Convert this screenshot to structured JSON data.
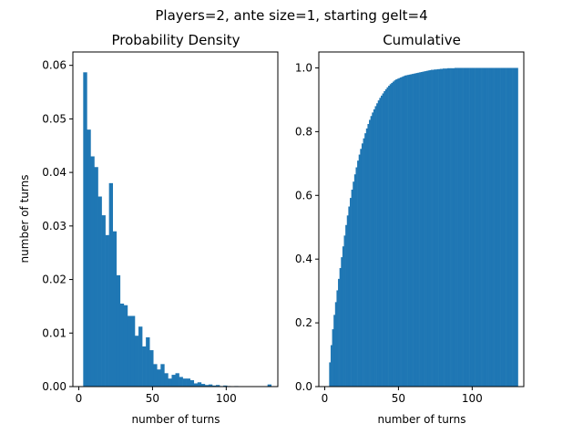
{
  "figure": {
    "suptitle": "Players=2, ante size=1, starting gelt=4",
    "bar_color": "#1f77b4"
  },
  "chart_data": [
    {
      "type": "bar",
      "title": "Probability Density",
      "xlabel": "number of turns",
      "ylabel": "number of turns",
      "xlim": [
        -4,
        135
      ],
      "ylim": [
        0,
        0.0625
      ],
      "xticks": [
        0,
        50,
        100
      ],
      "xtick_labels": [
        "0",
        "50",
        "100"
      ],
      "yticks": [
        0,
        0.01,
        0.02,
        0.03,
        0.04,
        0.05,
        0.06
      ],
      "ytick_labels": [
        "0.00",
        "0.01",
        "0.02",
        "0.03",
        "0.04",
        "0.05",
        "0.06"
      ],
      "bin_edges": [
        3,
        5.5,
        8,
        10.5,
        13,
        15.5,
        18,
        20.5,
        23,
        25.5,
        28,
        30.5,
        33,
        35.5,
        38,
        40.5,
        43,
        45.5,
        48,
        50.5,
        53,
        55.5,
        58,
        60.5,
        63,
        65.5,
        68,
        70.5,
        73,
        75.5,
        78,
        80.5,
        83,
        85.5,
        88,
        90.5,
        93,
        95.5,
        98,
        100.5,
        103,
        105.5,
        108,
        110.5,
        113,
        115.5,
        118,
        120.5,
        123,
        125.5,
        128,
        130.5
      ],
      "values": [
        0.0587,
        0.048,
        0.043,
        0.041,
        0.0355,
        0.032,
        0.0283,
        0.038,
        0.029,
        0.0208,
        0.0155,
        0.0152,
        0.0132,
        0.0132,
        0.0095,
        0.0112,
        0.0075,
        0.0092,
        0.0068,
        0.0042,
        0.0032,
        0.0042,
        0.0025,
        0.0015,
        0.0022,
        0.0025,
        0.0018,
        0.0015,
        0.0015,
        0.0012,
        0.0006,
        0.0008,
        0.0005,
        0.0003,
        0.0004,
        0.0002,
        0.0003,
        0.0001,
        0.0002,
        0.0001,
        0.0,
        0.0001,
        0.0,
        0.0,
        0.0,
        0.0,
        0.0,
        0.0,
        0.0,
        0.0,
        0.0004
      ]
    },
    {
      "type": "bar",
      "title": "Cumulative",
      "xlabel": "number of turns",
      "ylabel": "",
      "xlim": [
        -4,
        135
      ],
      "ylim": [
        0,
        1.05
      ],
      "xticks": [
        0,
        50,
        100
      ],
      "xtick_labels": [
        "0",
        "50",
        "100"
      ],
      "yticks": [
        0,
        0.2,
        0.4,
        0.6,
        0.8,
        1.0
      ],
      "ytick_labels": [
        "0.0",
        "0.2",
        "0.4",
        "0.6",
        "0.8",
        "1.0"
      ],
      "x_start": 3,
      "bin_width": 1,
      "values": [
        0.076,
        0.13,
        0.18,
        0.225,
        0.265,
        0.302,
        0.338,
        0.372,
        0.406,
        0.44,
        0.474,
        0.507,
        0.537,
        0.565,
        0.592,
        0.618,
        0.643,
        0.666,
        0.688,
        0.709,
        0.728,
        0.746,
        0.763,
        0.779,
        0.795,
        0.81,
        0.824,
        0.837,
        0.849,
        0.86,
        0.87,
        0.88,
        0.889,
        0.898,
        0.906,
        0.913,
        0.92,
        0.927,
        0.933,
        0.939,
        0.944,
        0.949,
        0.953,
        0.957,
        0.961,
        0.964,
        0.966,
        0.968,
        0.97,
        0.972,
        0.974,
        0.976,
        0.977,
        0.978,
        0.979,
        0.98,
        0.981,
        0.982,
        0.983,
        0.984,
        0.985,
        0.986,
        0.987,
        0.988,
        0.989,
        0.99,
        0.991,
        0.992,
        0.993,
        0.994,
        0.994,
        0.995,
        0.995,
        0.996,
        0.996,
        0.997,
        0.997,
        0.998,
        0.998,
        0.998,
        0.999,
        0.999,
        0.999,
        0.999,
        0.999,
        1.0,
        1.0,
        1.0,
        1.0,
        1.0,
        1.0,
        1.0,
        1.0,
        1.0,
        1.0,
        1.0,
        1.0,
        1.0,
        1.0,
        1.0,
        1.0,
        1.0,
        1.0,
        1.0,
        1.0,
        1.0,
        1.0,
        1.0,
        1.0,
        1.0,
        1.0,
        1.0,
        1.0,
        1.0,
        1.0,
        1.0,
        1.0,
        1.0,
        1.0,
        1.0,
        1.0,
        1.0,
        1.0,
        1.0,
        1.0,
        1.0,
        1.0,
        1.0
      ]
    }
  ]
}
